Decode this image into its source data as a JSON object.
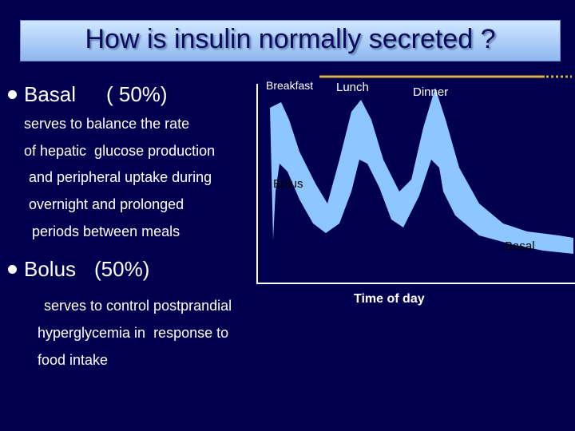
{
  "title": "How is insulin normally secreted ?",
  "bullets": [
    {
      "label": "Basal",
      "share": "( 50%)",
      "lines": [
        "serves to balance the rate",
        "of hepatic  glucose production",
        "and peripheral uptake during",
        "overnight and prolonged",
        "periods between meals"
      ]
    },
    {
      "label": "Bolus",
      "share": "(50%)",
      "lines": [
        "serves to control postprandial",
        "hyperglycemia in  response to",
        "food intake"
      ]
    }
  ],
  "chart": {
    "meal_labels": [
      "Breakfast",
      "Lunch",
      "Dinner"
    ],
    "bolus_label": "Bolus",
    "basal_label": "Basal",
    "x_axis_label": "Time of day"
  }
}
